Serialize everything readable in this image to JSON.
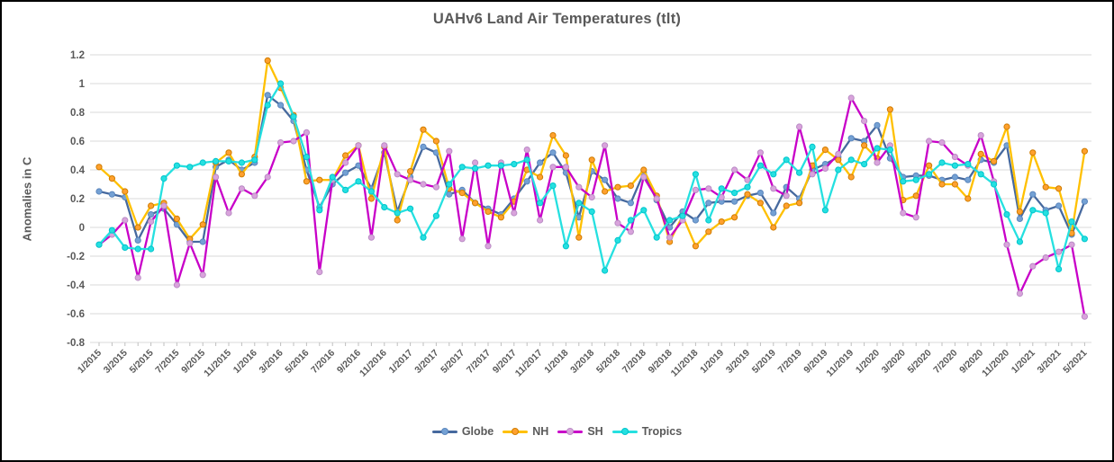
{
  "title": "UAHv6 Land Air Temperatures (tlt)",
  "y_axis": {
    "label": "Anomalies in C",
    "min": -0.8,
    "max": 1.2,
    "ticks": [
      {
        "label": "1.2",
        "value": 1.2
      },
      {
        "label": "1",
        "value": 1.0
      },
      {
        "label": "0.8",
        "value": 0.8
      },
      {
        "label": "0.6",
        "value": 0.6
      },
      {
        "label": "0.4",
        "value": 0.4
      },
      {
        "label": "0.2",
        "value": 0.2
      },
      {
        "label": "0",
        "value": 0.0
      },
      {
        "label": "-0.2",
        "value": -0.2
      },
      {
        "label": "-0.4",
        "value": -0.4
      },
      {
        "label": "-0.6",
        "value": -0.6
      },
      {
        "label": "-0.8",
        "value": -0.8
      }
    ]
  },
  "chart_data": {
    "type": "line",
    "grid": true,
    "legend_position": "bottom",
    "x_label_every": 2,
    "x": [
      "1/2015",
      "2/2015",
      "3/2015",
      "4/2015",
      "5/2015",
      "6/2015",
      "7/2015",
      "8/2015",
      "9/2015",
      "10/2015",
      "11/2015",
      "12/2015",
      "1/2016",
      "2/2016",
      "3/2016",
      "4/2016",
      "5/2016",
      "6/2016",
      "7/2016",
      "8/2016",
      "9/2016",
      "10/2016",
      "11/2016",
      "12/2016",
      "1/2017",
      "2/2017",
      "3/2017",
      "4/2017",
      "5/2017",
      "6/2017",
      "7/2017",
      "8/2017",
      "9/2017",
      "10/2017",
      "11/2017",
      "12/2017",
      "1/2018",
      "2/2018",
      "3/2018",
      "4/2018",
      "5/2018",
      "6/2018",
      "7/2018",
      "8/2018",
      "9/2018",
      "10/2018",
      "11/2018",
      "12/2018",
      "1/2019",
      "2/2019",
      "3/2019",
      "4/2019",
      "5/2019",
      "6/2019",
      "7/2019",
      "8/2019",
      "9/2019",
      "10/2019",
      "11/2019",
      "12/2019",
      "1/2020",
      "2/2020",
      "3/2020",
      "4/2020",
      "5/2020",
      "6/2020",
      "7/2020",
      "8/2020",
      "9/2020",
      "10/2020",
      "11/2020",
      "12/2020",
      "1/2021",
      "2/2021",
      "3/2021",
      "4/2021",
      "5/2021"
    ],
    "series": [
      {
        "name": "Globe",
        "line_color": "#46699e",
        "marker_color": "#74a1d4",
        "marker_edge": "#5b86bd",
        "values": [
          0.25,
          0.23,
          0.21,
          -0.09,
          0.09,
          0.13,
          0.02,
          -0.1,
          -0.1,
          0.42,
          0.47,
          0.4,
          0.45,
          0.92,
          0.85,
          0.74,
          0.4,
          0.14,
          0.3,
          0.38,
          0.43,
          0.27,
          0.52,
          0.11,
          0.35,
          0.56,
          0.52,
          0.23,
          0.26,
          0.17,
          0.13,
          0.09,
          0.2,
          0.32,
          0.45,
          0.52,
          0.38,
          0.07,
          0.39,
          0.33,
          0.2,
          0.17,
          0.38,
          0.19,
          0.0,
          0.11,
          0.05,
          0.17,
          0.18,
          0.18,
          0.22,
          0.24,
          0.1,
          0.28,
          0.2,
          0.4,
          0.44,
          0.49,
          0.62,
          0.6,
          0.71,
          0.48,
          0.35,
          0.36,
          0.36,
          0.33,
          0.35,
          0.33,
          0.47,
          0.45,
          0.57,
          0.06,
          0.23,
          0.12,
          0.15,
          -0.05,
          0.18
        ]
      },
      {
        "name": "NH",
        "line_color": "#ffc000",
        "marker_color": "#ffa12e",
        "marker_edge": "#d07c00",
        "values": [
          0.42,
          0.34,
          0.25,
          0.0,
          0.15,
          0.17,
          0.06,
          -0.08,
          0.02,
          0.45,
          0.52,
          0.37,
          0.49,
          1.16,
          0.97,
          0.78,
          0.32,
          0.33,
          0.33,
          0.5,
          0.57,
          0.2,
          0.56,
          0.05,
          0.39,
          0.68,
          0.6,
          0.27,
          0.24,
          0.17,
          0.11,
          0.07,
          0.18,
          0.4,
          0.35,
          0.64,
          0.5,
          -0.07,
          0.47,
          0.25,
          0.28,
          0.29,
          0.4,
          0.22,
          -0.1,
          0.08,
          -0.13,
          -0.03,
          0.04,
          0.07,
          0.23,
          0.17,
          0.0,
          0.15,
          0.17,
          0.43,
          0.54,
          0.47,
          0.35,
          0.57,
          0.48,
          0.82,
          0.19,
          0.22,
          0.43,
          0.3,
          0.3,
          0.2,
          0.51,
          0.46,
          0.7,
          0.11,
          0.52,
          0.28,
          0.27,
          -0.04,
          0.53
        ]
      },
      {
        "name": "SH",
        "line_color": "#c800c8",
        "marker_color": "#d9a3dc",
        "marker_edge": "#b98cc4",
        "values": [
          -0.12,
          -0.05,
          0.05,
          -0.35,
          0.04,
          0.15,
          -0.4,
          -0.11,
          -0.33,
          0.35,
          0.1,
          0.27,
          0.22,
          0.35,
          0.59,
          0.6,
          0.66,
          -0.31,
          0.33,
          0.45,
          0.57,
          -0.07,
          0.57,
          0.37,
          0.33,
          0.3,
          0.28,
          0.53,
          -0.08,
          0.45,
          -0.13,
          0.45,
          0.1,
          0.54,
          0.05,
          0.42,
          0.42,
          0.28,
          0.21,
          0.57,
          0.03,
          -0.03,
          0.35,
          0.2,
          -0.07,
          0.05,
          0.26,
          0.27,
          0.21,
          0.4,
          0.33,
          0.52,
          0.27,
          0.22,
          0.7,
          0.37,
          0.41,
          0.51,
          0.9,
          0.74,
          0.45,
          0.57,
          0.1,
          0.07,
          0.6,
          0.59,
          0.49,
          0.43,
          0.64,
          0.32,
          -0.12,
          -0.46,
          -0.27,
          -0.21,
          -0.17,
          -0.12,
          -0.62
        ]
      },
      {
        "name": "Tropics",
        "line_color": "#25e0e0",
        "marker_color": "#25e0e0",
        "marker_edge": "#00c4cc",
        "values": [
          -0.12,
          -0.02,
          -0.14,
          -0.15,
          -0.15,
          0.34,
          0.43,
          0.42,
          0.45,
          0.46,
          0.46,
          0.45,
          0.47,
          0.85,
          1.0,
          0.77,
          0.49,
          0.12,
          0.35,
          0.26,
          0.32,
          0.25,
          0.14,
          0.1,
          0.13,
          -0.07,
          0.08,
          0.3,
          0.42,
          0.41,
          0.43,
          0.43,
          0.44,
          0.47,
          0.17,
          0.29,
          -0.13,
          0.17,
          0.11,
          -0.3,
          -0.09,
          0.05,
          0.12,
          -0.07,
          0.05,
          0.08,
          0.37,
          0.05,
          0.27,
          0.24,
          0.28,
          0.43,
          0.37,
          0.47,
          0.38,
          0.56,
          0.12,
          0.4,
          0.47,
          0.44,
          0.55,
          0.54,
          0.32,
          0.33,
          0.37,
          0.45,
          0.43,
          0.44,
          0.37,
          0.3,
          0.09,
          -0.1,
          0.12,
          0.1,
          -0.29,
          0.04,
          -0.08
        ]
      }
    ]
  }
}
